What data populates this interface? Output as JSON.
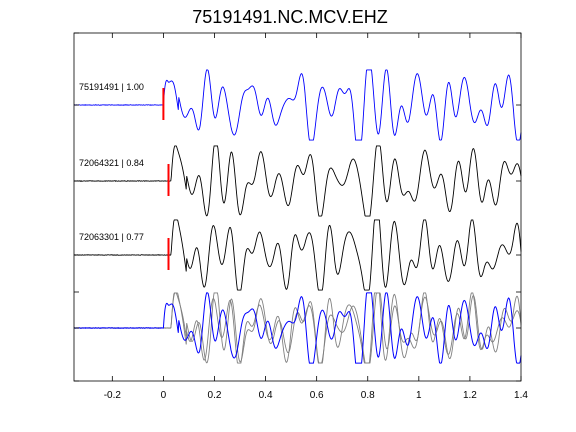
{
  "chart_data": {
    "type": "line",
    "title": "75191491.NC.MCV.EHZ",
    "xlabel": "",
    "ylabel": "",
    "xlim": [
      -0.35,
      1.4
    ],
    "x_ticks": [
      -0.2,
      0,
      0.2,
      0.4,
      0.6,
      0.8,
      1,
      1.2,
      1.4
    ],
    "x_tick_labels": [
      "-0.2",
      "0",
      "0.2",
      "0.4",
      "0.6",
      "0.8",
      "1",
      "1.2",
      "1.4"
    ],
    "grid": false,
    "colors": {
      "master_trace": "#0000ff",
      "matched_trace": "#000000",
      "overlay_trace": "#808080",
      "pick_marker": "#ff0000",
      "axes": "#000000"
    },
    "traces": [
      {
        "label": "75191491 | 1.00",
        "event_id": "75191491",
        "correlation": 1.0,
        "pick_time": 0.0,
        "color": "blue",
        "onset": 0.0,
        "amplitude": 1.0,
        "seed": 1
      },
      {
        "label": "72064321 | 0.84",
        "event_id": "72064321",
        "correlation": 0.84,
        "pick_time": 0.02,
        "color": "black",
        "onset": 0.03,
        "amplitude": 1.0,
        "seed": 2
      },
      {
        "label": "72063301 | 0.77",
        "event_id": "72063301",
        "correlation": 0.77,
        "pick_time": 0.02,
        "color": "black",
        "onset": 0.03,
        "amplitude": 1.0,
        "seed": 3
      }
    ],
    "stack": {
      "description_of_content": "overlay of all three traces",
      "includes": [
        "75191491",
        "72064321",
        "72063301"
      ]
    }
  }
}
